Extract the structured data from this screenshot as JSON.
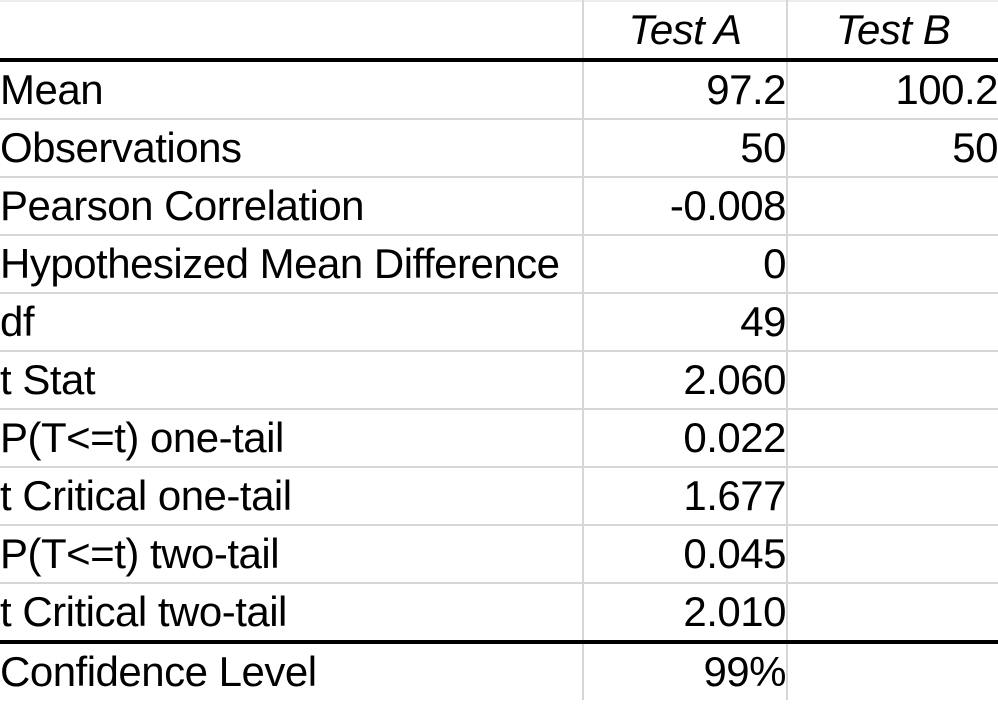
{
  "colors": {
    "background": "#ffffff",
    "text": "#000000",
    "grid_line": "#d6d6d6",
    "heavy_rule": "#000000"
  },
  "table": {
    "column_headers": [
      "",
      "Test A",
      "Test B"
    ],
    "rows": [
      {
        "label": "Mean",
        "test_a": "97.2",
        "test_b": "100.2"
      },
      {
        "label": "Observations",
        "test_a": "50",
        "test_b": "50"
      },
      {
        "label": "Pearson Correlation",
        "test_a": "-0.008",
        "test_b": ""
      },
      {
        "label": "Hypothesized Mean Difference",
        "test_a": "0",
        "test_b": ""
      },
      {
        "label": "df",
        "test_a": "49",
        "test_b": ""
      },
      {
        "label": "t Stat",
        "test_a": "2.060",
        "test_b": ""
      },
      {
        "label": "P(T<=t) one-tail",
        "test_a": "0.022",
        "test_b": ""
      },
      {
        "label": "t Critical one-tail",
        "test_a": "1.677",
        "test_b": ""
      },
      {
        "label": "P(T<=t) two-tail",
        "test_a": "0.045",
        "test_b": ""
      },
      {
        "label": "t Critical two-tail",
        "test_a": "2.010",
        "test_b": ""
      }
    ],
    "footer_row": {
      "label": "Confidence Level",
      "test_a": "99%",
      "test_b": ""
    }
  },
  "chart_data": {
    "type": "table",
    "title": "",
    "columns": [
      "",
      "Test A",
      "Test B"
    ],
    "rows": [
      [
        "Mean",
        97.2,
        100.2
      ],
      [
        "Observations",
        50,
        50
      ],
      [
        "Pearson Correlation",
        -0.008,
        null
      ],
      [
        "Hypothesized Mean Difference",
        0,
        null
      ],
      [
        "df",
        49,
        null
      ],
      [
        "t Stat",
        2.06,
        null
      ],
      [
        "P(T<=t) one-tail",
        0.022,
        null
      ],
      [
        "t Critical one-tail",
        1.677,
        null
      ],
      [
        "P(T<=t) two-tail",
        0.045,
        null
      ],
      [
        "t Critical two-tail",
        2.01,
        null
      ],
      [
        "Confidence Level",
        "99%",
        null
      ]
    ],
    "layout_hints": {
      "header_style": "italic, centered",
      "value_alignment": "right",
      "heavy_rule_below_header": true,
      "heavy_rule_above_last_row": true,
      "gridlines": "light gray between all rows and columns"
    }
  }
}
